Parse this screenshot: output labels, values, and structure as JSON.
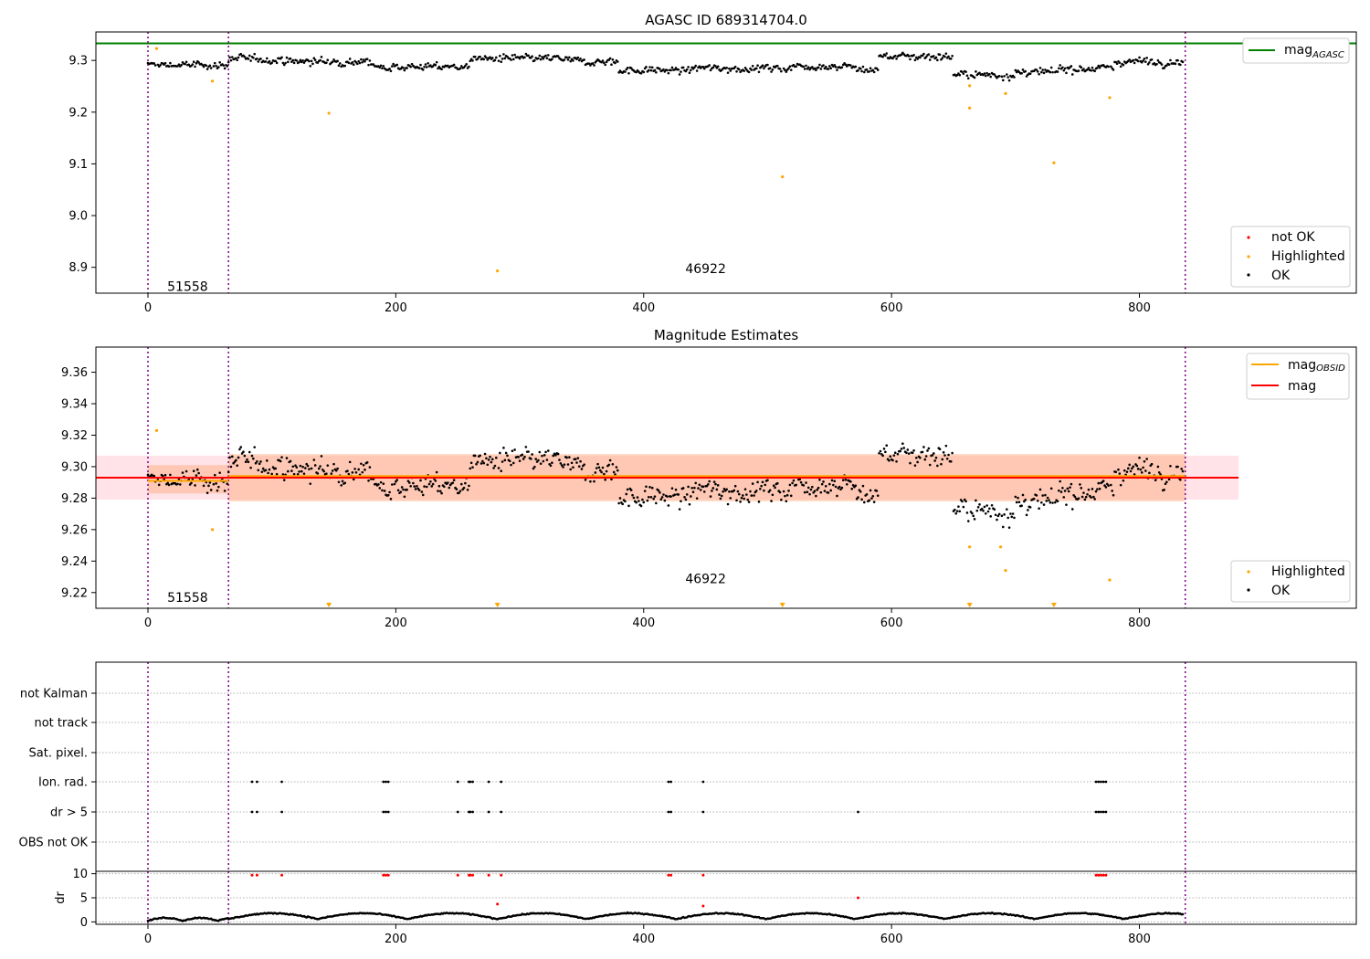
{
  "chart_data": [
    {
      "type": "scatter",
      "title": "AGASC ID 689314704.0",
      "xlim": [
        -42,
        975
      ],
      "ylim": [
        8.85,
        9.355
      ],
      "x_ticks": [
        0,
        200,
        400,
        600,
        800
      ],
      "y_ticks": [
        8.9,
        9.0,
        9.1,
        9.2,
        9.3
      ],
      "y_tick_labels": [
        "8.9",
        "9.0",
        "9.1",
        "9.2",
        "9.3"
      ],
      "hlines": [
        {
          "name": "mag_AGASC",
          "y": 9.333,
          "color": "#008000"
        }
      ],
      "obsid_boundaries": [
        0,
        65,
        837
      ],
      "obsid_labels": [
        {
          "text": "51558",
          "x": 32,
          "y": 8.863
        },
        {
          "text": "46922",
          "x": 450,
          "y": 8.898
        }
      ],
      "series": [
        {
          "name": "not OK",
          "color": "#ff0000",
          "points": []
        },
        {
          "name": "Highlighted",
          "color": "#ffa500",
          "points": [
            [
              7,
              9.323
            ],
            [
              52,
              9.26
            ],
            [
              146,
              9.198
            ],
            [
              282,
              8.893
            ],
            [
              512,
              9.075
            ],
            [
              663,
              9.251
            ],
            [
              663,
              9.208
            ],
            [
              692,
              9.236
            ],
            [
              731,
              9.102
            ],
            [
              776,
              9.228
            ]
          ]
        },
        {
          "name": "OK",
          "color": "#000000",
          "points": "generated"
        }
      ],
      "legend": {
        "upper": [
          {
            "label": "mag",
            "sub": "AGASC",
            "color": "#008000"
          }
        ],
        "lower": [
          {
            "label": "not OK",
            "color": "#ff0000"
          },
          {
            "label": "Highlighted",
            "color": "#ffa500"
          },
          {
            "label": "OK",
            "color": "#000000"
          }
        ]
      }
    },
    {
      "type": "scatter",
      "title": "Magnitude Estimates",
      "xlim": [
        -42,
        975
      ],
      "ylim": [
        9.21,
        9.376
      ],
      "x_ticks": [
        0,
        200,
        400,
        600,
        800
      ],
      "y_ticks": [
        9.22,
        9.24,
        9.26,
        9.28,
        9.3,
        9.32,
        9.34,
        9.36
      ],
      "y_tick_labels": [
        "9.22",
        "9.24",
        "9.26",
        "9.28",
        "9.30",
        "9.32",
        "9.34",
        "9.36"
      ],
      "bands": [
        {
          "x": [
            -42,
            880
          ],
          "y": [
            9.279,
            9.307
          ],
          "color": "#ffc0cb",
          "opacity": 0.45
        },
        {
          "x": [
            65,
            837
          ],
          "y": [
            9.278,
            9.308
          ],
          "color": "#ffb38a",
          "opacity": 0.55
        },
        {
          "x": [
            0,
            65
          ],
          "y": [
            9.283,
            9.301
          ],
          "color": "#ffb38a",
          "opacity": 0.55
        }
      ],
      "lines": [
        {
          "name": "mag_OBSID",
          "color": "#ffa500",
          "segments": [
            [
              0,
              65,
              9.291
            ],
            [
              65,
              837,
              9.294
            ]
          ]
        },
        {
          "name": "mag",
          "color": "#ff0000",
          "segments": [
            [
              -42,
              880,
              9.293
            ]
          ]
        }
      ],
      "obsid_boundaries": [
        0,
        65,
        837
      ],
      "obsid_labels": [
        {
          "text": "51558",
          "x": 32,
          "y": 9.217
        },
        {
          "text": "46922",
          "x": 450,
          "y": 9.229
        }
      ],
      "limit_markers_x": [
        146,
        282,
        512,
        663,
        731
      ],
      "series": [
        {
          "name": "Highlighted",
          "color": "#ffa500",
          "points": [
            [
              7,
              9.323
            ],
            [
              52,
              9.26
            ],
            [
              663,
              9.249
            ],
            [
              688,
              9.249
            ],
            [
              692,
              9.234
            ],
            [
              776,
              9.228
            ]
          ]
        },
        {
          "name": "OK",
          "color": "#000000",
          "points": "generated"
        }
      ],
      "legend": {
        "upper": [
          {
            "label": "mag",
            "sub": "OBSID",
            "color": "#ffa500"
          },
          {
            "label": "mag",
            "sub": "",
            "color": "#ff0000"
          }
        ],
        "lower": [
          {
            "label": "Highlighted",
            "color": "#ffa500"
          },
          {
            "label": "OK",
            "color": "#000000"
          }
        ]
      }
    },
    {
      "type": "scatter",
      "title": "",
      "xlim": [
        -42,
        975
      ],
      "categories": [
        "not Kalman",
        "not track",
        "Sat. pixel.",
        "Ion. rad.",
        "dr > 5",
        "OBS not OK"
      ],
      "flag_points": {
        "Ion. rad.": [
          84,
          88,
          108,
          190,
          192,
          194,
          250,
          259,
          260,
          262,
          275,
          285,
          420,
          422,
          448,
          765,
          767,
          769,
          771,
          773
        ],
        "dr > 5": [
          84,
          88,
          108,
          190,
          192,
          194,
          250,
          259,
          260,
          262,
          275,
          285,
          420,
          422,
          448,
          573,
          765,
          767,
          769,
          771,
          773
        ]
      },
      "obsid_boundaries": [
        0,
        65,
        837
      ]
    },
    {
      "type": "scatter",
      "title": "",
      "ylabel": "dr",
      "xlim": [
        -42,
        975
      ],
      "ylim": [
        -0.5,
        10.5
      ],
      "x_ticks": [
        0,
        200,
        400,
        600,
        800
      ],
      "y_ticks": [
        0,
        5,
        10
      ],
      "y_tick_labels": [
        "0",
        "5",
        "10"
      ],
      "red_points": [
        [
          84,
          9.7
        ],
        [
          88,
          9.7
        ],
        [
          108,
          9.7
        ],
        [
          190,
          9.7
        ],
        [
          192,
          9.7
        ],
        [
          194,
          9.7
        ],
        [
          250,
          9.7
        ],
        [
          259,
          9.7
        ],
        [
          260,
          9.7
        ],
        [
          262,
          9.7
        ],
        [
          275,
          9.7
        ],
        [
          282,
          3.7
        ],
        [
          285,
          9.7
        ],
        [
          420,
          9.7
        ],
        [
          422,
          9.7
        ],
        [
          448,
          9.7
        ],
        [
          448,
          3.3
        ],
        [
          573,
          5.0
        ],
        [
          765,
          9.7
        ],
        [
          767,
          9.7
        ],
        [
          769,
          9.7
        ],
        [
          771,
          9.7
        ],
        [
          773,
          9.7
        ]
      ],
      "obsid_boundaries": [
        0,
        65,
        837
      ]
    }
  ]
}
